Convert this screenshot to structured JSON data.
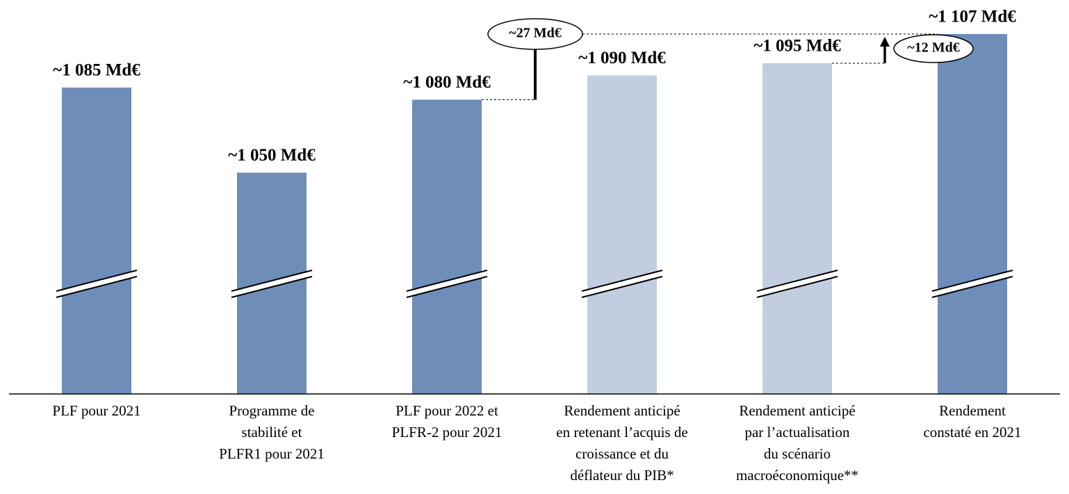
{
  "chart_data": {
    "type": "bar",
    "categories": [
      "PLF pour 2021",
      "Programme de\nstabilité et\nPLFR1 pour 2021",
      "PLF pour 2022 et\nPLFR-2 pour 2021",
      "Rendement anticipé\nen retenant l’acquis de\ncroissance et du\ndéflateur du PIB*",
      "Rendement anticipé\npar l’actualisation\ndu scénario\nmacroéconomique**",
      "Rendement\nconstaté en 2021"
    ],
    "values": [
      1085,
      1050,
      1080,
      1090,
      1095,
      1107
    ],
    "value_labels": [
      "~1 085 Md€",
      "~1 050 Md€",
      "~1 080 Md€",
      "~1 090 Md€",
      "~1 095 Md€",
      "~1 107 Md€"
    ],
    "colors": [
      "#6f8db9",
      "#6f8db9",
      "#6f8db9",
      "#c3cde0",
      "#c3cde0",
      "#6f8db9"
    ],
    "ylim": [
      959,
      1114
    ],
    "annotations": [
      {
        "text": "~27 Md€",
        "value": 27
      },
      {
        "text": "~12 Md€",
        "value": 12
      }
    ]
  }
}
